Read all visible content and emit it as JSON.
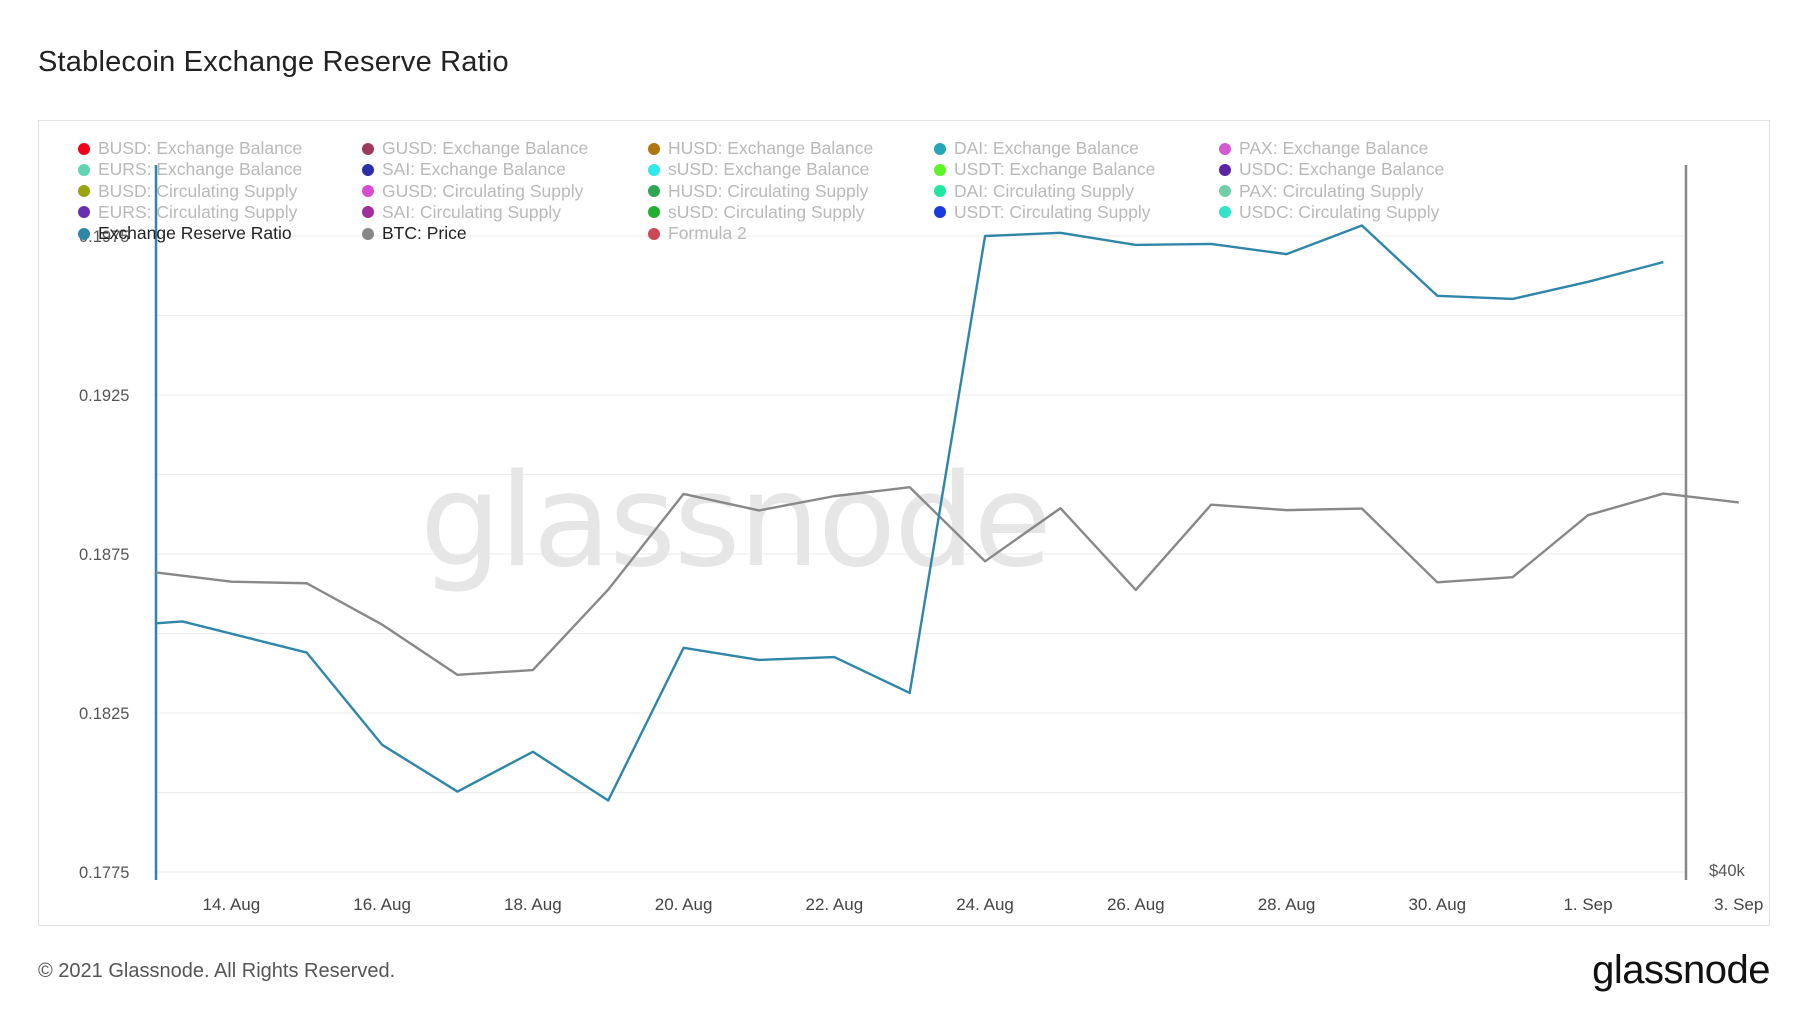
{
  "header": {
    "title": "Stablecoin Exchange Reserve Ratio"
  },
  "footer": {
    "copyright": "© 2021 Glassnode. All Rights Reserved.",
    "logo": "glassnode"
  },
  "watermark": "glassnode",
  "legend": [
    {
      "label": "BUSD: Exchange Balance",
      "color": "#f2001a",
      "active": false
    },
    {
      "label": "GUSD: Exchange Balance",
      "color": "#9b3a5a",
      "active": false
    },
    {
      "label": "HUSD: Exchange Balance",
      "color": "#b0770f",
      "active": false
    },
    {
      "label": "DAI: Exchange Balance",
      "color": "#26a6b8",
      "active": false
    },
    {
      "label": "PAX: Exchange Balance",
      "color": "#d35bd2",
      "active": false
    },
    {
      "label": "EURS: Exchange Balance",
      "color": "#5fd6b0",
      "active": false
    },
    {
      "label": "SAI: Exchange Balance",
      "color": "#2b2fa8",
      "active": false
    },
    {
      "label": "sUSD: Exchange Balance",
      "color": "#2fe9ea",
      "active": false
    },
    {
      "label": "USDT: Exchange Balance",
      "color": "#5cf52a",
      "active": false
    },
    {
      "label": "USDC: Exchange Balance",
      "color": "#5b25a5",
      "active": false
    },
    {
      "label": "BUSD: Circulating Supply",
      "color": "#9aa40e",
      "active": false
    },
    {
      "label": "GUSD: Circulating Supply",
      "color": "#d64dcf",
      "active": false
    },
    {
      "label": "HUSD: Circulating Supply",
      "color": "#2ea552",
      "active": false
    },
    {
      "label": "DAI: Circulating Supply",
      "color": "#1fe7a0",
      "active": false
    },
    {
      "label": "PAX: Circulating Supply",
      "color": "#6fcfa6",
      "active": false
    },
    {
      "label": "EURS: Circulating Supply",
      "color": "#6a2fb0",
      "active": false
    },
    {
      "label": "SAI: Circulating Supply",
      "color": "#a0309c",
      "active": false
    },
    {
      "label": "sUSD: Circulating Supply",
      "color": "#20b02e",
      "active": false
    },
    {
      "label": "USDT: Circulating Supply",
      "color": "#1a39e0",
      "active": false
    },
    {
      "label": "USDC: Circulating Supply",
      "color": "#2ee6c6",
      "active": false
    },
    {
      "label": "Exchange Reserve Ratio",
      "color": "#2f86a8",
      "active": true
    },
    {
      "label": "BTC: Price",
      "color": "#888888",
      "active": true
    },
    {
      "label": "Formula 2",
      "color": "#cc4a55",
      "active": false
    }
  ],
  "chart_data": {
    "type": "line",
    "x": [
      "13. Aug",
      "14. Aug",
      "15. Aug",
      "16. Aug",
      "17. Aug",
      "18. Aug",
      "19. Aug",
      "20. Aug",
      "21. Aug",
      "22. Aug",
      "23. Aug",
      "24. Aug",
      "25. Aug",
      "26. Aug",
      "27. Aug",
      "28. Aug",
      "29. Aug",
      "30. Aug",
      "31. Aug",
      "1. Sep",
      "2. Sep",
      "3. Sep"
    ],
    "x_ticks": [
      "14. Aug",
      "16. Aug",
      "18. Aug",
      "20. Aug",
      "22. Aug",
      "24. Aug",
      "26. Aug",
      "28. Aug",
      "30. Aug",
      "1. Sep",
      "3. Sep"
    ],
    "y_left": {
      "ticks": [
        "0.1775",
        "0.1825",
        "0.1875",
        "0.1925",
        "0.1975"
      ],
      "ylim": [
        0.1775,
        0.2
      ]
    },
    "y_right": {
      "ticks": [
        "$40k"
      ]
    },
    "grid": true,
    "legend_position": "top-left",
    "series": [
      {
        "name": "Exchange Reserve Ratio",
        "color": "#2f86a8",
        "axis": "left",
        "points": [
          [
            "13. Aug",
            0.18532
          ],
          [
            "13. Aug+",
            0.18538
          ],
          [
            "15. Aug",
            0.1844
          ],
          [
            "16. Aug",
            0.1815
          ],
          [
            "17. Aug",
            0.18003
          ],
          [
            "18. Aug",
            0.18128
          ],
          [
            "19. Aug",
            0.17975
          ],
          [
            "20. Aug",
            0.18455
          ],
          [
            "21. Aug",
            0.18417
          ],
          [
            "22. Aug",
            0.18426
          ],
          [
            "23. Aug",
            0.18313
          ],
          [
            "24. Aug",
            0.1975
          ],
          [
            "25. Aug",
            0.1976
          ],
          [
            "26. Aug",
            0.19722
          ],
          [
            "27. Aug",
            0.19725
          ],
          [
            "28. Aug",
            0.19693
          ],
          [
            "29. Aug",
            0.19783
          ],
          [
            "30. Aug",
            0.19562
          ],
          [
            "31. Aug",
            0.19552
          ],
          [
            "1. Sep",
            0.19606
          ],
          [
            "2. Sep",
            0.19668
          ]
        ]
      },
      {
        "name": "BTC: Price",
        "color": "#888888",
        "axis": "right",
        "values_on_left_scale": [
          0.18692,
          0.18663,
          0.18658,
          0.18528,
          0.1837,
          0.18385,
          0.18638,
          0.18939,
          0.18887,
          0.18932,
          0.1896,
          0.18727,
          0.18894,
          0.18637,
          0.18905,
          0.18888,
          0.18893,
          0.18661,
          0.18677,
          0.18872,
          0.1894,
          0.18912
        ]
      }
    ]
  }
}
